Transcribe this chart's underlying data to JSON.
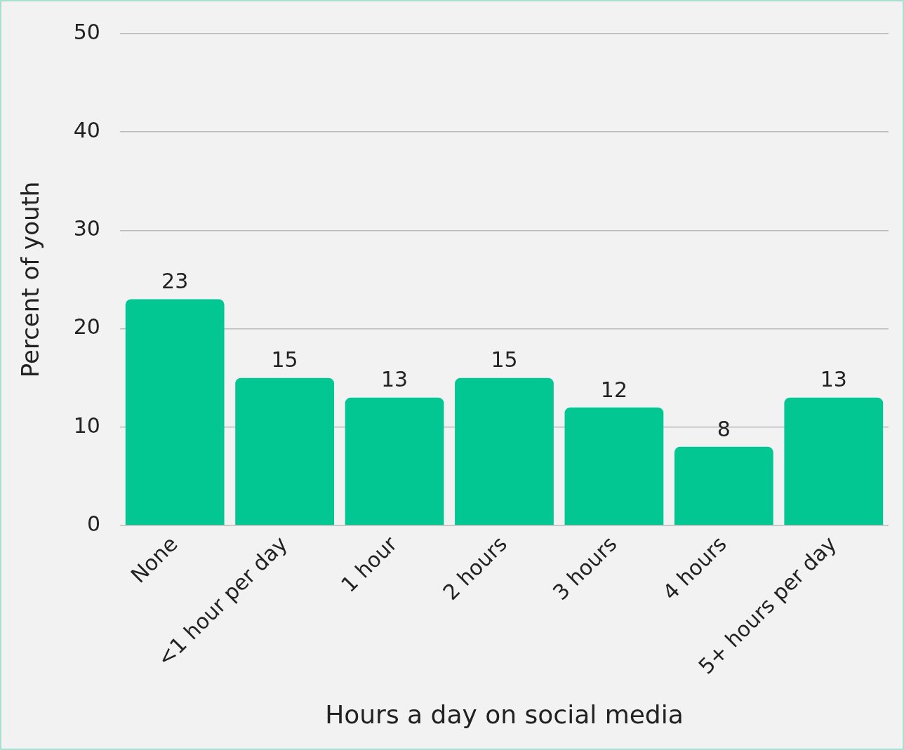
{
  "chart_data": {
    "type": "bar",
    "xlabel": "Hours a day on social media",
    "ylabel": "Percent of youth",
    "categories": [
      "None",
      "<1 hour per day",
      "1 hour",
      "2 hours",
      "3 hours",
      "4 hours",
      "5+ hours per day"
    ],
    "values": [
      23,
      15,
      13,
      15,
      12,
      8,
      13
    ],
    "color": "#03c793",
    "ylim": [
      0,
      50
    ],
    "yticks": [
      0,
      10,
      20,
      30,
      40,
      50
    ],
    "grid": "y",
    "legend": false,
    "data_labels": true
  }
}
